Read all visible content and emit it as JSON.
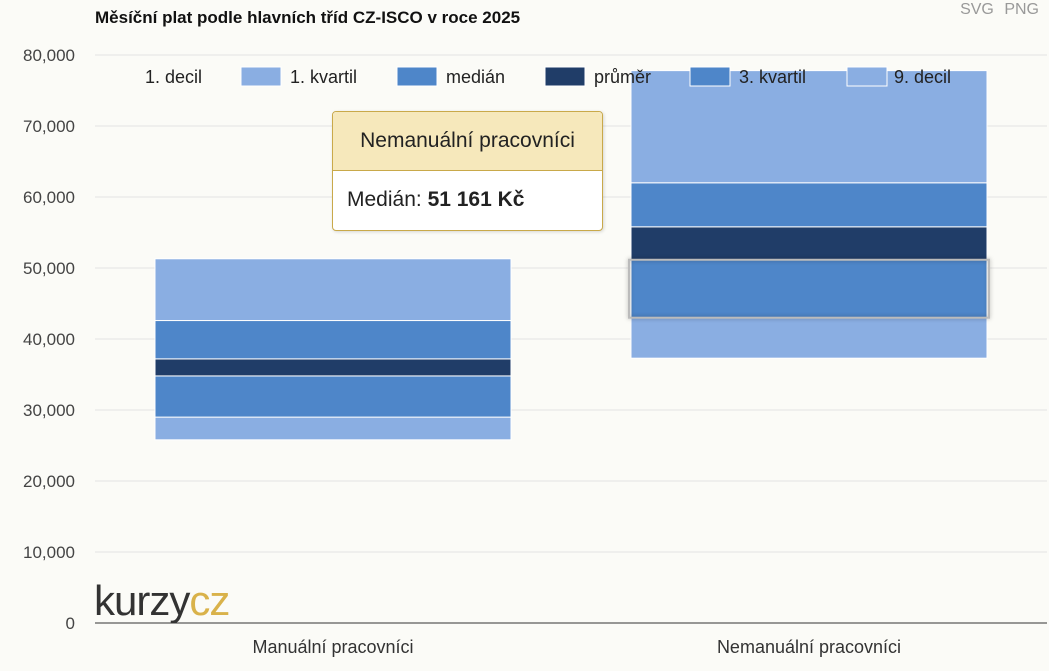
{
  "title": "Měsíční plat podle hlavních tříd CZ-ISCO v roce 2025",
  "exports": {
    "svg_label": "SVG",
    "png_label": "PNG"
  },
  "logo": {
    "part1": "kurzy",
    "part2": "cz"
  },
  "tooltip": {
    "header": "Nemanuální pracovníci",
    "label": "Medián:",
    "value": "51 161 Kč"
  },
  "chart_data": {
    "type": "bar",
    "subtype": "stacked-percentile-range",
    "categories": [
      "Manuální pracovníci",
      "Nemanuální pracovníci"
    ],
    "legend_position": "top",
    "legend": [
      "1. decil",
      "1. kvartil",
      "medián",
      "průměr",
      "3. kvartil",
      "9. decil"
    ],
    "ylim": [
      0,
      80000
    ],
    "yticks": [
      "0",
      "10,000",
      "20,000",
      "30,000",
      "40,000",
      "50,000",
      "60,000",
      "70,000",
      "80,000"
    ],
    "grid": true,
    "colors": {
      "decil": "#8aaee2",
      "kvartil": "#4e86c9",
      "prumer": "#203d68",
      "legend_decil": "#8aaee2",
      "legend_kvartil": "#4e86c9",
      "legend_prumer": "#203d68"
    },
    "series": [
      {
        "name": "Manuální pracovníci",
        "decil1": 25800,
        "kvartil1": 29000,
        "median": 34800,
        "prumer": 37200,
        "kvartil3": 42600,
        "decil9": 51300
      },
      {
        "name": "Nemanuální pracovníci",
        "decil1": 37300,
        "kvartil1": 43000,
        "median": 51161,
        "prumer": 55800,
        "kvartil3": 62000,
        "decil9": 77800
      }
    ],
    "highlighted_category": 1
  }
}
